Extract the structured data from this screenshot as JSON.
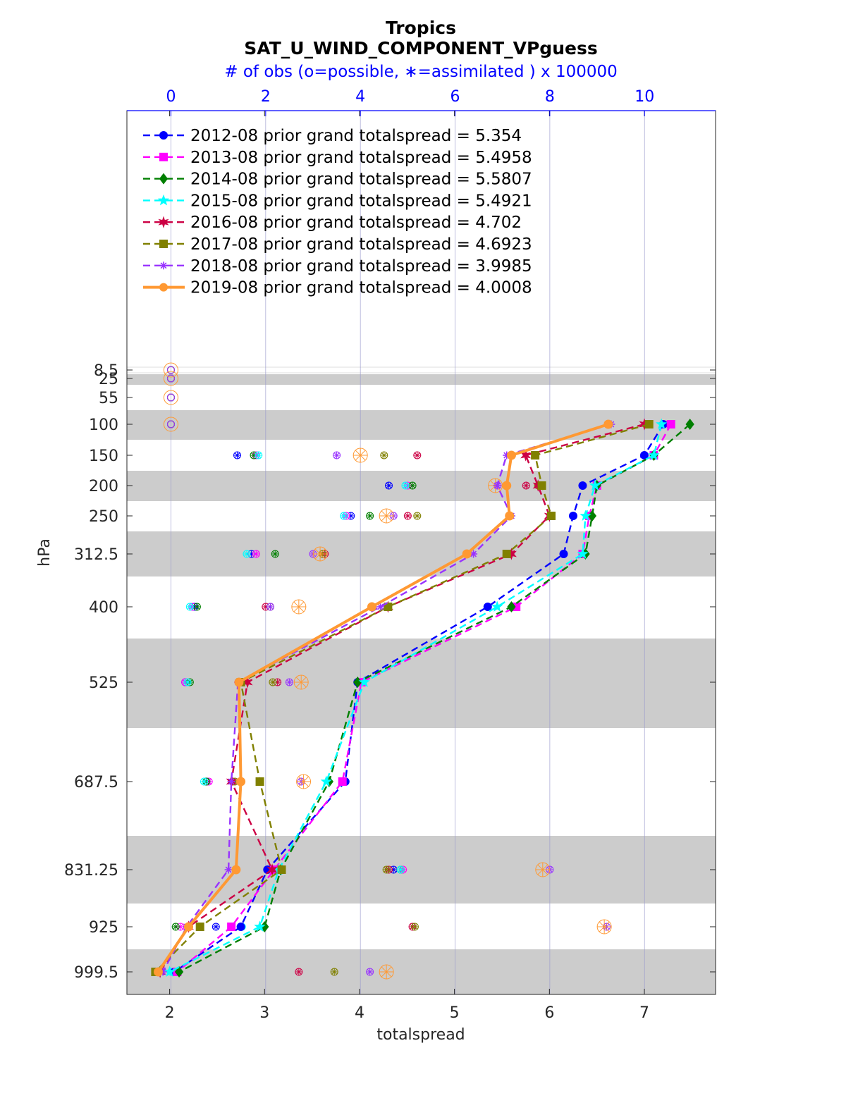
{
  "chart_data": {
    "type": "line",
    "title": "Tropics",
    "subtitle": "SAT_U_WIND_COMPONENT_VPguess",
    "top_axis_label": "# of obs (o=possible, ∗=assimilated ) x 100000",
    "xlabel": "totalspread",
    "ylabel": "hPa",
    "xlim": [
      1.55,
      7.75
    ],
    "x_ticks": [
      "2",
      "3",
      "4",
      "5",
      "6",
      "7"
    ],
    "top_xlim": [
      -0.93,
      11.5
    ],
    "top_ticks": [
      "0",
      "2",
      "4",
      "6",
      "8",
      "10"
    ],
    "y_ticks": [
      "8.5",
      "25",
      "55",
      "100",
      "150",
      "200",
      "250",
      "312.5",
      "400",
      "525",
      "687.5",
      "831.25",
      "925",
      "999.5"
    ],
    "levels": [
      100,
      150,
      200,
      250,
      312.5,
      400,
      525,
      687.5,
      831.25,
      925,
      999.5
    ],
    "grid": "vertical lines at top-axis ticks",
    "legend_position": "top-left",
    "colors": {
      "axis": "#262626",
      "top_axis": "#0000ff",
      "band": "#cccccc",
      "grid": "#9999cc"
    },
    "series": [
      {
        "name": "2012-08 prior grand totalspread = 5.354",
        "color": "#0000ff",
        "style": "dashed",
        "marker": "circle",
        "values": [
          7.2,
          7.0,
          6.35,
          6.25,
          6.15,
          5.35,
          3.98,
          3.85,
          3.03,
          2.75,
          2.05
        ],
        "obs_possible": [
          null,
          1.4,
          4.6,
          3.8,
          1.7,
          0.5,
          0.3,
          0.75,
          4.7,
          0.95,
          null
        ],
        "obs_assim": [
          null,
          1.4,
          4.6,
          3.8,
          1.7,
          0.5,
          0.3,
          0.75,
          4.7,
          0.95,
          null
        ]
      },
      {
        "name": "2013-08 prior grand totalspread = 5.4958",
        "color": "#ff00ff",
        "style": "dashed",
        "marker": "square",
        "values": [
          7.28,
          7.1,
          6.5,
          6.42,
          6.35,
          5.65,
          4.02,
          3.82,
          3.1,
          2.65,
          2.08
        ],
        "obs_possible": [
          null,
          1.8,
          5.0,
          3.7,
          1.8,
          0.45,
          0.3,
          0.8,
          4.9,
          0.2,
          0.05
        ],
        "obs_assim": [
          null,
          1.8,
          5.0,
          3.7,
          1.8,
          0.45,
          0.3,
          0.8,
          4.9,
          0.2,
          0.05
        ]
      },
      {
        "name": "2014-08 prior grand totalspread = 5.5807",
        "color": "#007f00",
        "style": "dashed",
        "marker": "diamond",
        "values": [
          7.48,
          7.1,
          6.5,
          6.45,
          6.38,
          5.6,
          3.98,
          3.68,
          3.17,
          3.0,
          2.1
        ],
        "obs_possible": [
          null,
          1.75,
          5.1,
          4.2,
          2.2,
          0.55,
          0.4,
          0.75,
          4.85,
          0.1,
          0.1
        ],
        "obs_assim": [
          null,
          1.75,
          5.1,
          4.2,
          2.2,
          0.55,
          0.4,
          0.75,
          4.85,
          0.1,
          0.1
        ]
      },
      {
        "name": "2015-08 prior grand totalspread = 5.4921",
        "color": "#00ffff",
        "style": "dashed",
        "marker": "star",
        "values": [
          7.18,
          7.1,
          6.48,
          6.38,
          6.35,
          5.45,
          4.05,
          3.65,
          3.15,
          2.95,
          2.0
        ],
        "obs_possible": [
          null,
          1.85,
          4.95,
          3.65,
          1.6,
          0.4,
          0.35,
          0.7,
          4.85,
          1.5,
          0.0
        ],
        "obs_assim": [
          null,
          1.85,
          4.95,
          3.65,
          1.6,
          0.4,
          0.35,
          0.7,
          4.85,
          1.5,
          0.0
        ]
      },
      {
        "name": "2016-08 prior grand totalspread = 4.702",
        "color": "#cc0044",
        "style": "dashed",
        "marker": "hexagram",
        "values": [
          7.0,
          5.75,
          5.88,
          6.0,
          5.6,
          4.3,
          2.82,
          2.65,
          3.08,
          2.2,
          1.9
        ],
        "obs_possible": [
          null,
          5.2,
          7.5,
          5.0,
          3.25,
          2.0,
          2.25,
          1.3,
          4.6,
          5.1,
          2.7
        ],
        "obs_assim": [
          null,
          5.2,
          7.5,
          5.0,
          3.25,
          2.0,
          2.25,
          1.3,
          4.6,
          5.1,
          2.7
        ]
      },
      {
        "name": "2017-08 prior grand totalspread = 4.6923",
        "color": "#808000",
        "style": "dashed",
        "marker": "square",
        "values": [
          7.05,
          5.85,
          5.92,
          6.02,
          5.55,
          4.3,
          2.75,
          2.95,
          3.18,
          2.32,
          1.85
        ],
        "obs_possible": [
          null,
          4.5,
          7.75,
          5.2,
          3.2,
          2.1,
          2.15,
          1.35,
          4.55,
          5.15,
          3.45
        ],
        "obs_assim": [
          null,
          4.5,
          7.75,
          5.2,
          3.2,
          2.1,
          2.15,
          1.35,
          4.55,
          5.15,
          3.45
        ]
      },
      {
        "name": "2018-08 prior grand totalspread = 3.9985",
        "color": "#9933ff",
        "style": "dashed",
        "marker": "asterisk",
        "values": [
          6.65,
          5.55,
          5.45,
          5.6,
          5.2,
          4.22,
          2.72,
          2.65,
          2.62,
          2.18,
          1.93
        ],
        "obs_possible": [
          null,
          3.5,
          6.9,
          4.7,
          3.0,
          2.1,
          2.5,
          2.75,
          8.0,
          9.2,
          4.2
        ],
        "obs_assim": [
          null,
          3.5,
          6.9,
          4.7,
          3.0,
          2.1,
          2.5,
          2.75,
          8.0,
          9.2,
          4.2
        ]
      },
      {
        "name": "2019-08 prior grand totalspread = 4.0008",
        "color": "#ff9933",
        "style": "solid",
        "marker": "circle",
        "values": [
          6.62,
          5.6,
          5.55,
          5.58,
          5.13,
          4.13,
          2.73,
          2.75,
          2.7,
          2.2,
          1.88
        ],
        "obs_possible": [
          null,
          4.0,
          6.85,
          4.55,
          3.15,
          2.7,
          2.75,
          2.8,
          7.85,
          9.15,
          4.55
        ],
        "obs_assim": [
          null,
          4.0,
          6.85,
          4.55,
          3.15,
          2.7,
          2.75,
          2.8,
          7.85,
          9.15,
          4.55
        ]
      }
    ]
  }
}
